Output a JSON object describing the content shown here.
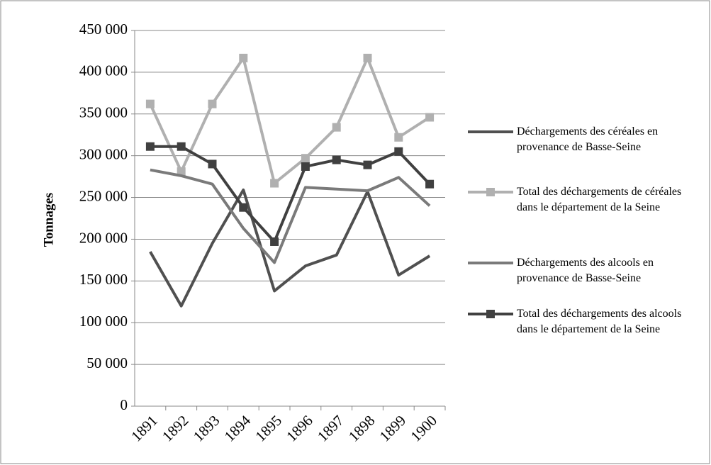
{
  "chart_data": {
    "type": "line",
    "y_label": "Tonnages",
    "categories": [
      "1891",
      "1892",
      "1893",
      "1894",
      "1895",
      "1896",
      "1897",
      "1898",
      "1899",
      "1900"
    ],
    "series": [
      {
        "name": "Déchargements des céréales en provenance de Basse-Seine",
        "color": "#505050",
        "values": [
          185000,
          120000,
          195000,
          259000,
          138000,
          168000,
          181000,
          257000,
          157000,
          180000
        ]
      },
      {
        "name": "Total des déchargements de céréales dans le département de la Seine",
        "color": "#b0b0b0",
        "marker": "square",
        "values": [
          362000,
          281000,
          362000,
          417000,
          267000,
          297000,
          334000,
          417000,
          322000,
          346000
        ]
      },
      {
        "name": "Déchargements des alcools en provenance de Basse-Seine",
        "color": "#7a7a7a",
        "values": [
          283000,
          276000,
          266000,
          213000,
          172000,
          262000,
          260000,
          258000,
          274000,
          240000
        ]
      },
      {
        "name": "Total des déchargements des alcools dans le département de la Seine",
        "color": "#404040",
        "marker": "square",
        "values": [
          311000,
          311000,
          290000,
          238000,
          197000,
          287000,
          295000,
          289000,
          305000,
          266000
        ]
      }
    ],
    "ylim": [
      0,
      450000
    ],
    "yticks": [
      {
        "value": 0,
        "label": "0"
      },
      {
        "value": 50000,
        "label": "50 000"
      },
      {
        "value": 100000,
        "label": "100 000"
      },
      {
        "value": 150000,
        "label": "150 000"
      },
      {
        "value": 200000,
        "label": "200 000"
      },
      {
        "value": 250000,
        "label": "250 000"
      },
      {
        "value": 300000,
        "label": "300 000"
      },
      {
        "value": 350000,
        "label": "350 000"
      },
      {
        "value": 400000,
        "label": "400 000"
      },
      {
        "value": 450000,
        "label": "450 000"
      }
    ],
    "grid": true,
    "legend": "right"
  }
}
